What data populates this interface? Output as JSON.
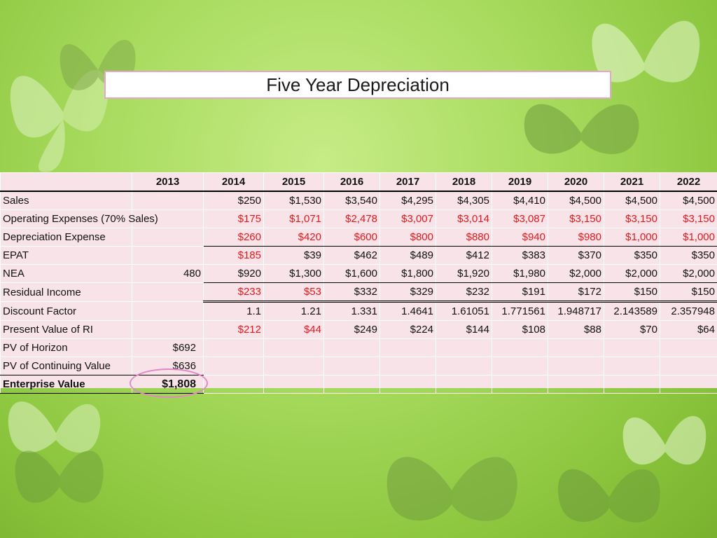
{
  "title": "Five Year Depreciation",
  "table": {
    "headers": [
      "",
      "2013",
      "2014",
      "2015",
      "2016",
      "2017",
      "2018",
      "2019",
      "2020",
      "2021",
      "2022"
    ],
    "rows": [
      {
        "label": "Sales",
        "values": [
          "",
          "$250",
          "$1,530",
          "$3,540",
          "$4,295",
          "$4,305",
          "$4,410",
          "$4,500",
          "$4,500",
          "$4,500"
        ]
      },
      {
        "label": "Operating Expenses (70% Sales)",
        "values": [
          "",
          "$175",
          "$1,071",
          "$2,478",
          "$3,007",
          "$3,014",
          "$3,087",
          "$3,150",
          "$3,150",
          "$3,150"
        ]
      },
      {
        "label": "Depreciation Expense",
        "values": [
          "",
          "$260",
          "$420",
          "$600",
          "$800",
          "$880",
          "$940",
          "$980",
          "$1,000",
          "$1,000"
        ]
      },
      {
        "label": "EPAT",
        "values": [
          "",
          "$185",
          "$39",
          "$462",
          "$489",
          "$412",
          "$383",
          "$370",
          "$350",
          "$350"
        ]
      },
      {
        "label": "NEA",
        "values": [
          "480",
          "$920",
          "$1,300",
          "$1,600",
          "$1,800",
          "$1,920",
          "$1,980",
          "$2,000",
          "$2,000",
          "$2,000"
        ]
      },
      {
        "label": "Residual Income",
        "values": [
          "",
          "$233",
          "$53",
          "$332",
          "$329",
          "$232",
          "$191",
          "$172",
          "$150",
          "$150"
        ]
      },
      {
        "label": "Discount Factor",
        "values": [
          "",
          "1.1",
          "1.21",
          "1.331",
          "1.4641",
          "1.61051",
          "1.771561",
          "1.948717",
          "2.143589",
          "2.357948"
        ]
      },
      {
        "label": "Present Value of RI",
        "values": [
          "",
          "$212",
          "$44",
          "$249",
          "$224",
          "$144",
          "$108",
          "$88",
          "$70",
          "$64"
        ]
      },
      {
        "label": "PV of Horizon",
        "values": [
          "$692",
          "",
          "",
          "",
          "",
          "",
          "",
          "",
          "",
          ""
        ]
      },
      {
        "label": "PV of Continuing Value",
        "values": [
          "$636",
          "",
          "",
          "",
          "",
          "",
          "",
          "",
          "",
          ""
        ]
      },
      {
        "label": "Enterprise Value",
        "values": [
          "$1,808",
          "",
          "",
          "",
          "",
          "",
          "",
          "",
          "",
          ""
        ]
      }
    ]
  },
  "colors": {
    "negative_text": "#e8161b",
    "highlight_oval": "#e487c8",
    "table_bg": "#f8e4e8"
  }
}
